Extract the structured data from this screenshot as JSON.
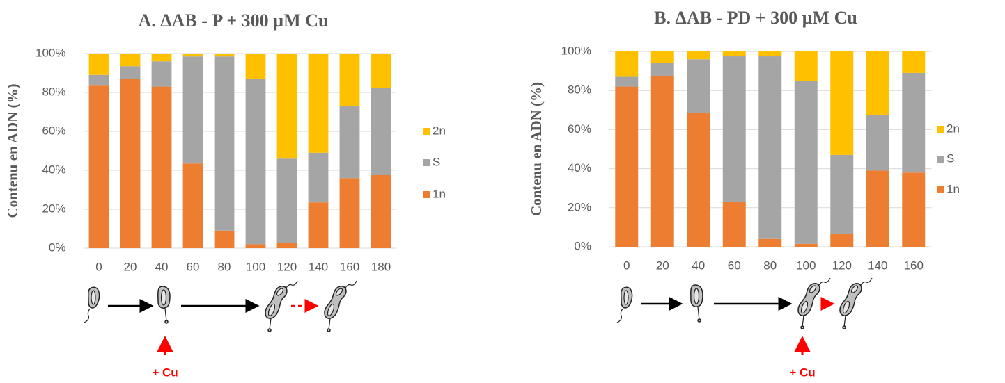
{
  "chart_data": [
    {
      "type": "stacked_bar",
      "title": "A. ΔAB - P + 300 µM Cu",
      "y_label": "Contenu en ADN (%)",
      "categories": [
        "0",
        "20",
        "40",
        "60",
        "80",
        "100",
        "120",
        "140",
        "160",
        "180"
      ],
      "series": [
        {
          "name": "1n",
          "color": "#ed7d31",
          "values": [
            83.5,
            87,
            83,
            43.5,
            9,
            2,
            2.5,
            23.5,
            36,
            37.5
          ]
        },
        {
          "name": "S",
          "color": "#a5a5a5",
          "values": [
            5.5,
            6.5,
            13,
            55,
            89.5,
            85,
            43.5,
            25.5,
            37,
            45
          ]
        },
        {
          "name": "2n",
          "color": "#ffc000",
          "values": [
            11,
            6.5,
            4,
            1.5,
            1.5,
            13,
            54,
            51,
            27,
            17.5
          ]
        }
      ],
      "ylim": [
        0,
        100
      ],
      "yticks": [
        {
          "value": 0,
          "label": "0%"
        },
        {
          "value": 20,
          "label": "20%"
        },
        {
          "value": 40,
          "label": "40%"
        },
        {
          "value": 60,
          "label": "60%"
        },
        {
          "value": 80,
          "label": "80%"
        },
        {
          "value": 100,
          "label": "100%"
        }
      ],
      "grid": true,
      "legend": "right",
      "annotation": "+ Cu"
    },
    {
      "type": "stacked_bar",
      "title": "B. ΔAB - PD + 300 µM Cu",
      "y_label": "Contenu en ADN (%)",
      "categories": [
        "0",
        "20",
        "40",
        "60",
        "80",
        "100",
        "120",
        "140",
        "160"
      ],
      "series": [
        {
          "name": "1n",
          "color": "#ed7d31",
          "values": [
            82,
            87.5,
            68.5,
            23,
            4,
            1.5,
            6.5,
            39,
            38
          ]
        },
        {
          "name": "S",
          "color": "#a5a5a5",
          "values": [
            5,
            6.5,
            27.5,
            74.5,
            93.5,
            83.5,
            40.5,
            28.5,
            51
          ]
        },
        {
          "name": "2n",
          "color": "#ffc000",
          "values": [
            13,
            6,
            4,
            2.5,
            2.5,
            15,
            53,
            32.5,
            11
          ]
        }
      ],
      "ylim": [
        0,
        100
      ],
      "yticks": [
        {
          "value": 0,
          "label": "0%"
        },
        {
          "value": 20,
          "label": "20%"
        },
        {
          "value": 40,
          "label": "40%"
        },
        {
          "value": 60,
          "label": "60%"
        },
        {
          "value": 80,
          "label": "80%"
        },
        {
          "value": 100,
          "label": "100%"
        }
      ],
      "grid": true,
      "legend": "right",
      "annotation": "+ Cu"
    }
  ]
}
